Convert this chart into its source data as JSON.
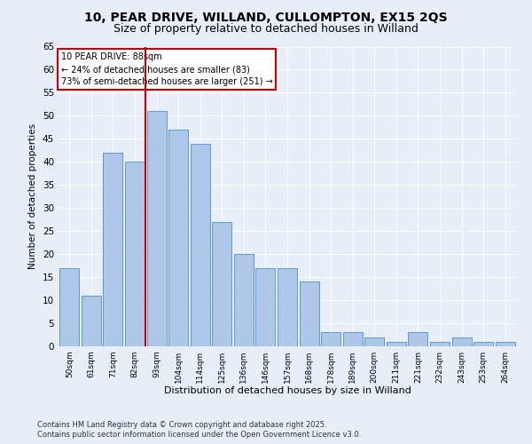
{
  "title1": "10, PEAR DRIVE, WILLAND, CULLOMPTON, EX15 2QS",
  "title2": "Size of property relative to detached houses in Willand",
  "xlabel": "Distribution of detached houses by size in Willand",
  "ylabel": "Number of detached properties",
  "footnote1": "Contains HM Land Registry data © Crown copyright and database right 2025.",
  "footnote2": "Contains public sector information licensed under the Open Government Licence v3.0.",
  "categories": [
    "50sqm",
    "61sqm",
    "71sqm",
    "82sqm",
    "93sqm",
    "104sqm",
    "114sqm",
    "125sqm",
    "136sqm",
    "146sqm",
    "157sqm",
    "168sqm",
    "178sqm",
    "189sqm",
    "200sqm",
    "211sqm",
    "221sqm",
    "232sqm",
    "243sqm",
    "253sqm",
    "264sqm"
  ],
  "values": [
    17,
    11,
    42,
    40,
    51,
    47,
    44,
    27,
    20,
    17,
    17,
    14,
    3,
    3,
    2,
    1,
    3,
    1,
    2,
    1,
    1
  ],
  "bar_color": "#aec6e8",
  "bar_edge_color": "#5b9bd5",
  "vline_color": "#cc0000",
  "annotation_title": "10 PEAR DRIVE: 88sqm",
  "annotation_line2": "← 24% of detached houses are smaller (83)",
  "annotation_line3": "73% of semi-detached houses are larger (251) →",
  "annotation_box_color": "#cc0000",
  "ylim": [
    0,
    65
  ],
  "yticks": [
    0,
    5,
    10,
    15,
    20,
    25,
    30,
    35,
    40,
    45,
    50,
    55,
    60,
    65
  ],
  "background_color": "#e8eef8",
  "plot_bg_color": "#e8eef8",
  "title_fontsize": 10,
  "subtitle_fontsize": 9
}
